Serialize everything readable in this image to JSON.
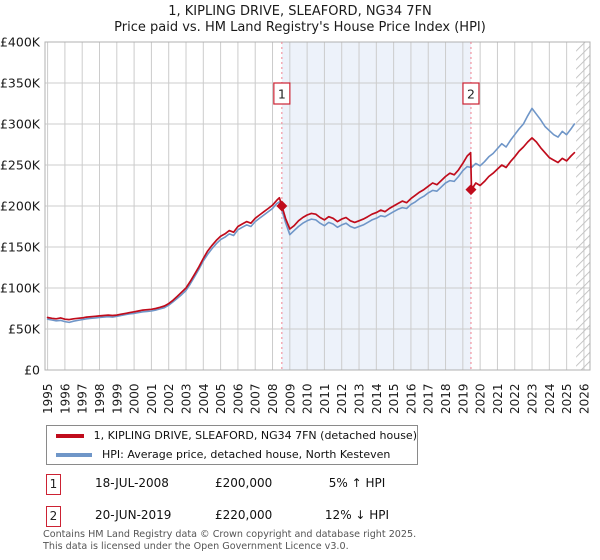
{
  "title": {
    "line1": "1, KIPLING DRIVE, SLEAFORD, NG34 7FN",
    "line2": "Price paid vs. HM Land Registry's House Price Index (HPI)"
  },
  "chart_data": {
    "type": "line",
    "title": "1, KIPLING DRIVE, SLEAFORD, NG34 7FN — Price paid vs. HM Land Registry's House Price Index (HPI)",
    "y_unit": "GBP thousands",
    "x_range": [
      1994.85,
      2026.35
    ],
    "y_range": [
      0,
      400
    ],
    "grid": true,
    "y_ticks": {
      "labels": [
        "£400K",
        "£350K",
        "£300K",
        "£250K",
        "£200K",
        "£150K",
        "£100K",
        "£50K",
        "£0"
      ],
      "values": [
        400,
        350,
        300,
        250,
        200,
        150,
        100,
        50,
        0
      ]
    },
    "x_ticks": [
      1995,
      1996,
      1997,
      1998,
      1999,
      2000,
      2001,
      2002,
      2003,
      2004,
      2005,
      2006,
      2007,
      2008,
      2009,
      2010,
      2011,
      2012,
      2013,
      2014,
      2015,
      2016,
      2017,
      2018,
      2019,
      2020,
      2021,
      2022,
      2023,
      2024,
      2025,
      2026
    ],
    "shaded_region": {
      "from": 2008.54,
      "to": 2019.47,
      "color": "#edf2fa"
    },
    "hatch_region": {
      "from": 2025.55,
      "to": 2026.35
    },
    "event_line_color": "#f2808f",
    "grid_color": "#cccccc",
    "border_color": "#b0b0b0",
    "series": [
      {
        "name": "HPI: Average price, detached house, North Kesteven",
        "color": "#6f96c8",
        "width": 1.6,
        "points": [
          [
            1995.0,
            62
          ],
          [
            1995.25,
            61
          ],
          [
            1995.5,
            60
          ],
          [
            1995.75,
            60.5
          ],
          [
            1996.0,
            59
          ],
          [
            1996.25,
            58
          ],
          [
            1996.5,
            59.5
          ],
          [
            1996.75,
            60.5
          ],
          [
            1997.0,
            61.5
          ],
          [
            1997.25,
            62.5
          ],
          [
            1997.5,
            63
          ],
          [
            1997.75,
            63.5
          ],
          [
            1998.0,
            64
          ],
          [
            1998.25,
            64.5
          ],
          [
            1998.5,
            65
          ],
          [
            1998.75,
            64.5
          ],
          [
            1999.0,
            65.5
          ],
          [
            1999.25,
            66.5
          ],
          [
            1999.5,
            67.5
          ],
          [
            1999.75,
            68.5
          ],
          [
            2000.0,
            69
          ],
          [
            2000.25,
            70
          ],
          [
            2000.5,
            71
          ],
          [
            2000.75,
            71.5
          ],
          [
            2001.0,
            72
          ],
          [
            2001.25,
            73
          ],
          [
            2001.5,
            74.5
          ],
          [
            2001.75,
            76
          ],
          [
            2002.0,
            79
          ],
          [
            2002.25,
            83
          ],
          [
            2002.5,
            87.5
          ],
          [
            2002.75,
            92
          ],
          [
            2003.0,
            97
          ],
          [
            2003.25,
            105
          ],
          [
            2003.5,
            114
          ],
          [
            2003.75,
            123
          ],
          [
            2004.0,
            133
          ],
          [
            2004.25,
            141
          ],
          [
            2004.5,
            148
          ],
          [
            2004.75,
            154
          ],
          [
            2005.0,
            159
          ],
          [
            2005.25,
            162
          ],
          [
            2005.5,
            166
          ],
          [
            2005.75,
            164
          ],
          [
            2006.0,
            171
          ],
          [
            2006.25,
            174
          ],
          [
            2006.5,
            177
          ],
          [
            2006.75,
            175
          ],
          [
            2007.0,
            181
          ],
          [
            2007.25,
            185
          ],
          [
            2007.5,
            189
          ],
          [
            2007.75,
            193
          ],
          [
            2008.0,
            197
          ],
          [
            2008.25,
            203
          ],
          [
            2008.4,
            205
          ],
          [
            2008.54,
            195
          ],
          [
            2008.75,
            180
          ],
          [
            2009.0,
            165
          ],
          [
            2009.25,
            170
          ],
          [
            2009.5,
            175
          ],
          [
            2009.75,
            179
          ],
          [
            2010.0,
            182
          ],
          [
            2010.25,
            184
          ],
          [
            2010.5,
            183
          ],
          [
            2010.75,
            179
          ],
          [
            2011.0,
            176
          ],
          [
            2011.25,
            180
          ],
          [
            2011.5,
            178
          ],
          [
            2011.75,
            174
          ],
          [
            2012.0,
            177
          ],
          [
            2012.25,
            179
          ],
          [
            2012.5,
            175
          ],
          [
            2012.75,
            173
          ],
          [
            2013.0,
            175
          ],
          [
            2013.25,
            177
          ],
          [
            2013.5,
            180
          ],
          [
            2013.75,
            183
          ],
          [
            2014.0,
            185
          ],
          [
            2014.25,
            188
          ],
          [
            2014.5,
            187
          ],
          [
            2014.75,
            190
          ],
          [
            2015.0,
            193
          ],
          [
            2015.25,
            196
          ],
          [
            2015.5,
            198
          ],
          [
            2015.75,
            197
          ],
          [
            2016.0,
            202
          ],
          [
            2016.25,
            205
          ],
          [
            2016.5,
            209
          ],
          [
            2016.75,
            212
          ],
          [
            2017.0,
            216
          ],
          [
            2017.25,
            219
          ],
          [
            2017.5,
            218
          ],
          [
            2017.75,
            223
          ],
          [
            2018.0,
            228
          ],
          [
            2018.25,
            231
          ],
          [
            2018.5,
            230
          ],
          [
            2018.75,
            236
          ],
          [
            2019.0,
            243
          ],
          [
            2019.25,
            248
          ],
          [
            2019.5,
            247
          ],
          [
            2019.75,
            252
          ],
          [
            2020.0,
            249
          ],
          [
            2020.25,
            254
          ],
          [
            2020.5,
            260
          ],
          [
            2020.75,
            264
          ],
          [
            2021.0,
            270
          ],
          [
            2021.25,
            276
          ],
          [
            2021.5,
            272
          ],
          [
            2021.75,
            280
          ],
          [
            2022.0,
            287
          ],
          [
            2022.25,
            294
          ],
          [
            2022.5,
            300
          ],
          [
            2022.75,
            310
          ],
          [
            2023.0,
            319
          ],
          [
            2023.25,
            312
          ],
          [
            2023.5,
            305
          ],
          [
            2023.75,
            297
          ],
          [
            2024.0,
            292
          ],
          [
            2024.25,
            287
          ],
          [
            2024.5,
            284
          ],
          [
            2024.75,
            291
          ],
          [
            2025.0,
            287
          ],
          [
            2025.25,
            294
          ],
          [
            2025.45,
            300
          ]
        ]
      },
      {
        "name": "1, KIPLING DRIVE, SLEAFORD, NG34 7FN (detached house)",
        "color": "#c00c1c",
        "width": 1.7,
        "points": [
          [
            1995.0,
            64
          ],
          [
            1995.25,
            63
          ],
          [
            1995.5,
            62.5
          ],
          [
            1995.75,
            63.5
          ],
          [
            1996.0,
            62
          ],
          [
            1996.25,
            61.5
          ],
          [
            1996.5,
            62.5
          ],
          [
            1996.75,
            63
          ],
          [
            1997.0,
            63.5
          ],
          [
            1997.25,
            64.5
          ],
          [
            1997.5,
            65
          ],
          [
            1997.75,
            65.5
          ],
          [
            1998.0,
            66
          ],
          [
            1998.25,
            66.5
          ],
          [
            1998.5,
            67
          ],
          [
            1998.75,
            66.5
          ],
          [
            1999.0,
            67
          ],
          [
            1999.25,
            68
          ],
          [
            1999.5,
            69
          ],
          [
            1999.75,
            70
          ],
          [
            2000.0,
            71
          ],
          [
            2000.25,
            72
          ],
          [
            2000.5,
            73
          ],
          [
            2000.75,
            73.5
          ],
          [
            2001.0,
            74
          ],
          [
            2001.25,
            75
          ],
          [
            2001.5,
            76.5
          ],
          [
            2001.75,
            78
          ],
          [
            2002.0,
            81
          ],
          [
            2002.25,
            85
          ],
          [
            2002.5,
            90
          ],
          [
            2002.75,
            95
          ],
          [
            2003.0,
            100
          ],
          [
            2003.25,
            108
          ],
          [
            2003.5,
            117
          ],
          [
            2003.75,
            126
          ],
          [
            2004.0,
            136
          ],
          [
            2004.25,
            145
          ],
          [
            2004.5,
            152
          ],
          [
            2004.75,
            158
          ],
          [
            2005.0,
            163
          ],
          [
            2005.25,
            166
          ],
          [
            2005.5,
            170
          ],
          [
            2005.75,
            168
          ],
          [
            2006.0,
            175
          ],
          [
            2006.25,
            178
          ],
          [
            2006.5,
            181
          ],
          [
            2006.75,
            179
          ],
          [
            2007.0,
            185
          ],
          [
            2007.25,
            189
          ],
          [
            2007.5,
            193
          ],
          [
            2007.75,
            197
          ],
          [
            2008.0,
            201
          ],
          [
            2008.25,
            207
          ],
          [
            2008.4,
            210
          ],
          [
            2008.54,
            200
          ],
          [
            2008.75,
            185
          ],
          [
            2009.0,
            172
          ],
          [
            2009.25,
            176
          ],
          [
            2009.5,
            182
          ],
          [
            2009.75,
            186
          ],
          [
            2010.0,
            189
          ],
          [
            2010.25,
            191
          ],
          [
            2010.5,
            190
          ],
          [
            2010.75,
            186
          ],
          [
            2011.0,
            183
          ],
          [
            2011.25,
            187
          ],
          [
            2011.5,
            185
          ],
          [
            2011.75,
            181
          ],
          [
            2012.0,
            184
          ],
          [
            2012.25,
            186
          ],
          [
            2012.5,
            182
          ],
          [
            2012.75,
            180
          ],
          [
            2013.0,
            182
          ],
          [
            2013.25,
            184
          ],
          [
            2013.5,
            187
          ],
          [
            2013.75,
            190
          ],
          [
            2014.0,
            192
          ],
          [
            2014.25,
            195
          ],
          [
            2014.5,
            193
          ],
          [
            2014.75,
            197
          ],
          [
            2015.0,
            200
          ],
          [
            2015.25,
            203
          ],
          [
            2015.5,
            206
          ],
          [
            2015.75,
            204
          ],
          [
            2016.0,
            209
          ],
          [
            2016.25,
            213
          ],
          [
            2016.5,
            217
          ],
          [
            2016.75,
            220
          ],
          [
            2017.0,
            224
          ],
          [
            2017.25,
            228
          ],
          [
            2017.5,
            226
          ],
          [
            2017.75,
            231
          ],
          [
            2018.0,
            236
          ],
          [
            2018.25,
            240
          ],
          [
            2018.5,
            238
          ],
          [
            2018.75,
            244
          ],
          [
            2019.0,
            252
          ],
          [
            2019.25,
            261
          ],
          [
            2019.45,
            265
          ],
          [
            2019.5,
            220
          ],
          [
            2019.75,
            228
          ],
          [
            2020.0,
            225
          ],
          [
            2020.25,
            230
          ],
          [
            2020.5,
            236
          ],
          [
            2020.75,
            240
          ],
          [
            2021.0,
            245
          ],
          [
            2021.25,
            250
          ],
          [
            2021.5,
            247
          ],
          [
            2021.75,
            254
          ],
          [
            2022.0,
            260
          ],
          [
            2022.25,
            267
          ],
          [
            2022.5,
            272
          ],
          [
            2022.75,
            278
          ],
          [
            2023.0,
            283
          ],
          [
            2023.25,
            278
          ],
          [
            2023.5,
            271
          ],
          [
            2023.75,
            265
          ],
          [
            2024.0,
            259
          ],
          [
            2024.25,
            256
          ],
          [
            2024.5,
            253
          ],
          [
            2024.75,
            258
          ],
          [
            2025.0,
            255
          ],
          [
            2025.25,
            261
          ],
          [
            2025.45,
            265
          ]
        ]
      }
    ],
    "sale_markers": [
      {
        "label": "1",
        "x": 2008.54,
        "y": 200
      },
      {
        "label": "2",
        "x": 2019.47,
        "y": 220
      }
    ],
    "marker_color": "#c00c1c",
    "marker_box_border": "#cc2233"
  },
  "legend": {
    "items": [
      {
        "label": "1, KIPLING DRIVE, SLEAFORD, NG34 7FN (detached house)",
        "color": "#c00c1c"
      },
      {
        "label": "HPI: Average price, detached house, North Kesteven",
        "color": "#6f96c8"
      }
    ]
  },
  "transactions": [
    {
      "marker": "1",
      "date": "18-JUL-2008",
      "price": "£200,000",
      "hpi_delta": "5% ↑ HPI"
    },
    {
      "marker": "2",
      "date": "20-JUN-2019",
      "price": "£220,000",
      "hpi_delta": "12% ↓ HPI"
    }
  ],
  "footer": {
    "line1": "Contains HM Land Registry data © Crown copyright and database right 2025.",
    "line2": "This data is licensed under the Open Government Licence v3.0."
  }
}
